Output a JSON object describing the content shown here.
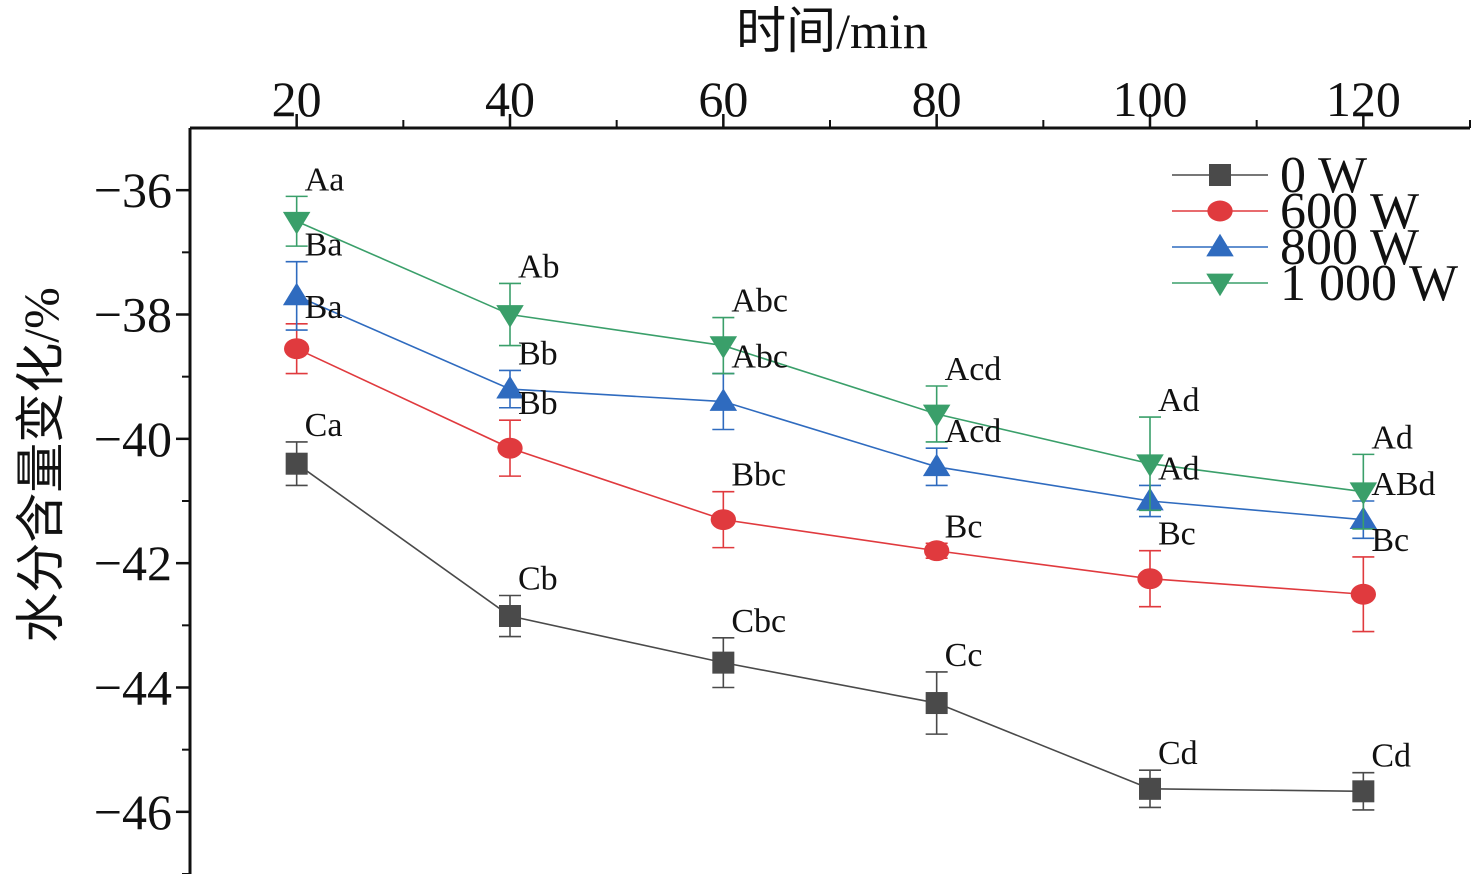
{
  "chart_data": {
    "type": "line",
    "xlabel": "时间/min",
    "ylabel": "水分含量变化/%",
    "x": [
      20,
      40,
      60,
      80,
      100,
      120
    ],
    "x_tick_labels": [
      "20",
      "40",
      "60",
      "80",
      "100",
      "120"
    ],
    "xlim": [
      10,
      130
    ],
    "ylim": [
      -47,
      -35
    ],
    "y_ticks": [
      -36,
      -38,
      -40,
      -42,
      -44,
      -46
    ],
    "y_tick_labels": [
      "−36",
      "−38",
      "−40",
      "−42",
      "−44",
      "−46"
    ],
    "x_axis_position": "top",
    "y_axis_reversed": true,
    "grid": false,
    "legend_position": "top-right",
    "series": [
      {
        "name": "0 W",
        "color": "#4a4a4a",
        "marker": "square",
        "values": [
          -40.4,
          -42.85,
          -43.6,
          -44.25,
          -45.63,
          -45.67
        ],
        "errors": [
          0.35,
          0.33,
          0.4,
          0.5,
          0.3,
          0.3
        ],
        "labels": [
          "Ca",
          "Cb",
          "Cbc",
          "Cc",
          "Cd",
          "Cd"
        ]
      },
      {
        "name": "600 W",
        "color": "#e03a3e",
        "marker": "circle",
        "values": [
          -38.55,
          -40.15,
          -41.3,
          -41.8,
          -42.25,
          -42.5
        ],
        "errors": [
          0.4,
          0.45,
          0.45,
          0.12,
          0.45,
          0.6
        ],
        "labels": [
          "Ba",
          "Bb",
          "Bbc",
          "Bc",
          "Bc",
          "Bc"
        ]
      },
      {
        "name": "800 W",
        "color": "#2f6bbf",
        "marker": "triangle-up",
        "values": [
          -37.7,
          -39.2,
          -39.4,
          -40.45,
          -41.0,
          -41.3
        ],
        "errors": [
          0.55,
          0.3,
          0.45,
          0.3,
          0.25,
          0.3
        ],
        "labels": [
          "Ba",
          "Bb",
          "Abc",
          "Acd",
          "Ad",
          "ABd"
        ]
      },
      {
        "name": "1 000 W",
        "color": "#3a9f6a",
        "marker": "triangle-down",
        "values": [
          -36.5,
          -38.0,
          -38.5,
          -39.6,
          -40.4,
          -40.85
        ],
        "errors": [
          0.4,
          0.5,
          0.45,
          0.45,
          0.75,
          0.6
        ],
        "labels": [
          "Aa",
          "Ab",
          "Abc",
          "Acd",
          "Ad",
          "Ad"
        ]
      }
    ]
  }
}
